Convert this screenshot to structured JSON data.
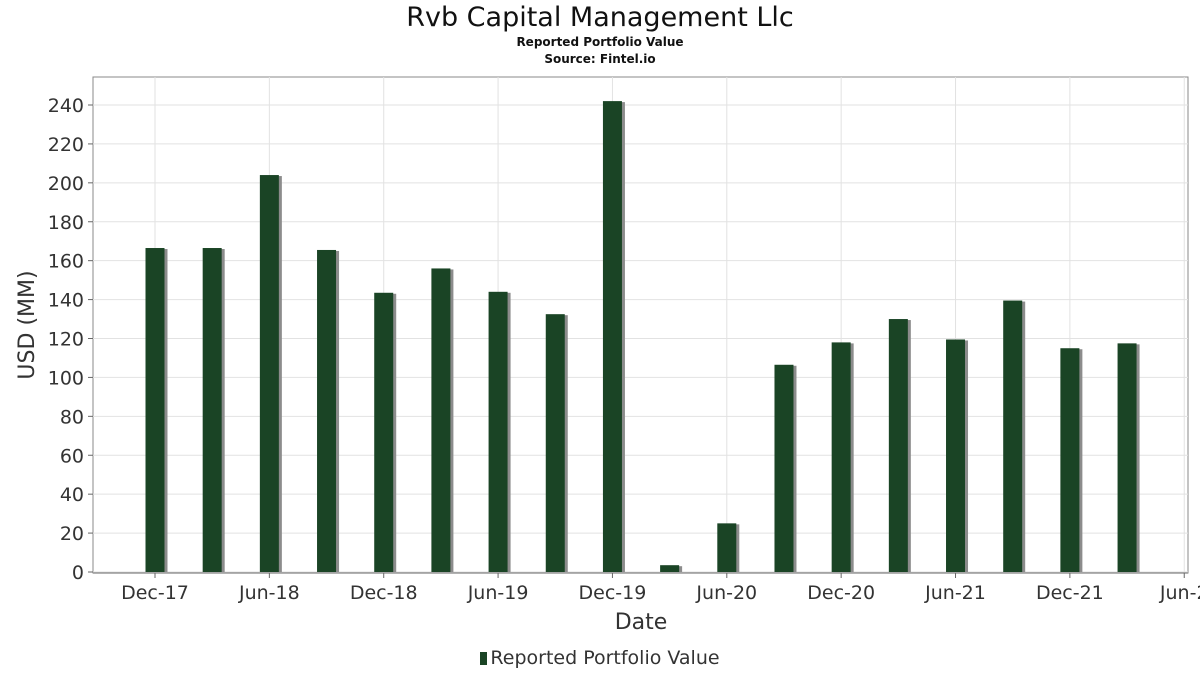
{
  "chart_data": {
    "type": "bar",
    "title": "Rvb Capital Management Llc",
    "subtitle": "Reported Portfolio Value",
    "source": "Source: Fintel.io",
    "xlabel": "Date",
    "ylabel": "USD (MM)",
    "ylim": [
      0,
      255
    ],
    "yticks": [
      0,
      20,
      40,
      60,
      80,
      100,
      120,
      140,
      160,
      180,
      200,
      220,
      240
    ],
    "xticks": [
      "Dec-17",
      "Jun-18",
      "Dec-18",
      "Jun-19",
      "Dec-19",
      "Jun-20",
      "Dec-20",
      "Jun-21",
      "Dec-21",
      "Jun-2"
    ],
    "grid": true,
    "legend_placement": "bottom",
    "bar_color": "#1a4425",
    "series": [
      {
        "name": "Reported Portfolio Value",
        "points": [
          {
            "date": "2017-12",
            "value": 166.5
          },
          {
            "date": "2018-03",
            "value": 166.5
          },
          {
            "date": "2018-06",
            "value": 204
          },
          {
            "date": "2018-09",
            "value": 165.5
          },
          {
            "date": "2018-12",
            "value": 143.5
          },
          {
            "date": "2019-03",
            "value": 156
          },
          {
            "date": "2019-06",
            "value": 144
          },
          {
            "date": "2019-09",
            "value": 132.5
          },
          {
            "date": "2019-12",
            "value": 242
          },
          {
            "date": "2020-03",
            "value": 3.5
          },
          {
            "date": "2020-06",
            "value": 25
          },
          {
            "date": "2020-09",
            "value": 106.5
          },
          {
            "date": "2020-12",
            "value": 118
          },
          {
            "date": "2021-03",
            "value": 130
          },
          {
            "date": "2021-06",
            "value": 119.5
          },
          {
            "date": "2021-09",
            "value": 139.5
          },
          {
            "date": "2021-12",
            "value": 115
          },
          {
            "date": "2022-03",
            "value": 117.5
          }
        ]
      }
    ]
  }
}
